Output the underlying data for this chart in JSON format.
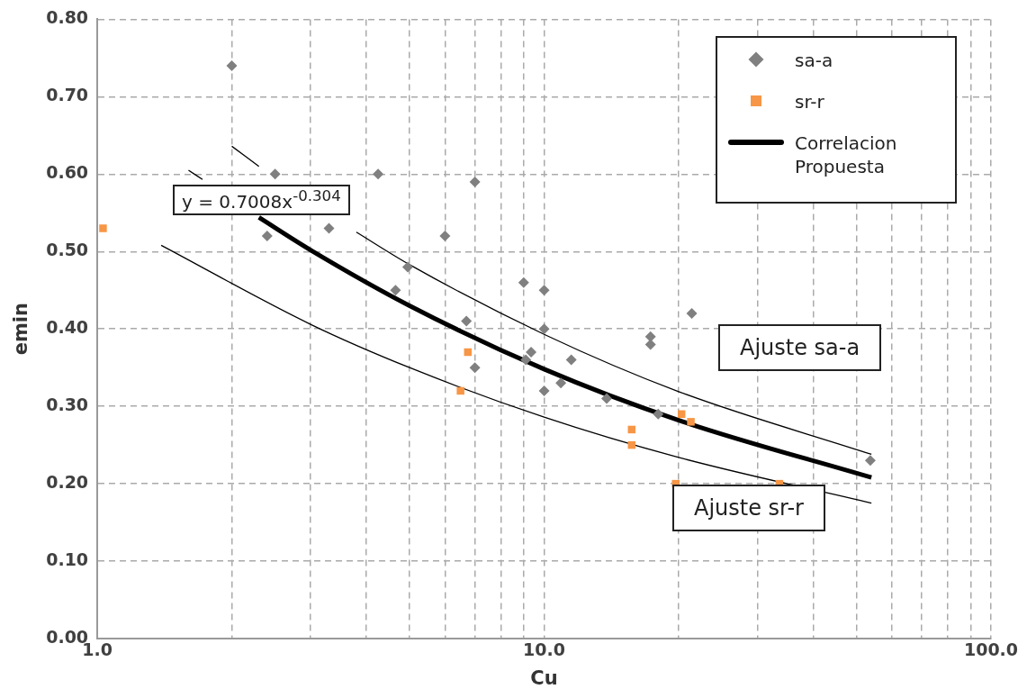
{
  "chart_data": {
    "type": "scatter",
    "xlabel": "Cu",
    "ylabel": "emin",
    "log": "x",
    "grid": true,
    "legend": "top right",
    "xlim": [
      1,
      100
    ],
    "xticks": [
      {
        "value": 1,
        "label": "1.0"
      },
      {
        "value": 2,
        "label": null
      },
      {
        "value": 3,
        "label": null
      },
      {
        "value": 4,
        "label": null
      },
      {
        "value": 5,
        "label": null
      },
      {
        "value": 6,
        "label": null
      },
      {
        "value": 7,
        "label": null
      },
      {
        "value": 8,
        "label": null
      },
      {
        "value": 9,
        "label": null
      },
      {
        "value": 10,
        "label": "10.0"
      },
      {
        "value": 20,
        "label": null
      },
      {
        "value": 30,
        "label": null
      },
      {
        "value": 40,
        "label": null
      },
      {
        "value": 50,
        "label": null
      },
      {
        "value": 60,
        "label": null
      },
      {
        "value": 70,
        "label": null
      },
      {
        "value": 80,
        "label": null
      },
      {
        "value": 90,
        "label": null
      },
      {
        "value": 100,
        "label": "100.0"
      }
    ],
    "ylim": [
      0,
      0.8
    ],
    "yticks": [
      {
        "value": 0,
        "label": "0.00"
      },
      {
        "value": 0.1,
        "label": "0.10"
      },
      {
        "value": 0.2,
        "label": "0.20"
      },
      {
        "value": 0.3,
        "label": "0.30"
      },
      {
        "value": 0.4,
        "label": "0.40"
      },
      {
        "value": 0.5,
        "label": "0.50"
      },
      {
        "value": 0.6,
        "label": "0.60"
      },
      {
        "value": 0.7,
        "label": "0.70"
      },
      {
        "value": 0.8,
        "label": "0.80"
      }
    ],
    "annotations": [
      "y = 0.7008x$^{-0.304}$",
      "Ajuste sa-a",
      "Ajuste sr-r"
    ],
    "series": [
      {
        "type": "line",
        "color": "#000000",
        "marker": "none",
        "x": [
          2,
          2.3,
          3,
          3.8,
          5,
          10,
          20,
          54
        ],
        "values": [
          0.636,
          0.61,
          null,
          0.525,
          0.483,
          0.393,
          0.319,
          0.238
        ]
      },
      {
        "type": "line",
        "color": "#000000",
        "marker": "none",
        "x": [
          1.6,
          1.72
        ],
        "values": [
          0.605,
          0.593
        ]
      },
      {
        "type": "line",
        "color": "#000000",
        "marker": "none",
        "x": [
          1.39,
          3,
          5,
          10,
          20,
          54
        ],
        "values": [
          0.508,
          0.406,
          0.35,
          0.286,
          0.234,
          0.175
        ]
      },
      {
        "name": "sa-a",
        "color": "#808080",
        "marker": "diamond",
        "x": [
          2,
          2.5,
          2.4,
          3.3,
          4.25,
          7,
          6,
          4.95,
          4.65,
          6.7,
          9.0,
          10,
          10,
          9.35,
          9.1,
          7,
          11.5,
          10.9,
          10,
          13.8,
          21.4,
          17.3,
          17.3,
          18,
          53.7
        ],
        "values": [
          0.74,
          0.6,
          0.52,
          0.53,
          0.6,
          0.59,
          0.52,
          0.48,
          0.45,
          0.41,
          0.46,
          0.45,
          0.4,
          0.37,
          0.36,
          0.35,
          0.36,
          0.33,
          0.32,
          0.31,
          0.42,
          0.39,
          0.38,
          0.29,
          0.23
        ]
      },
      {
        "name": "sr-r",
        "color": "#f79646",
        "marker": "square",
        "x": [
          1.03,
          6.75,
          6.5,
          15.7,
          15.7,
          20.3,
          21.3,
          19.7,
          33.6
        ],
        "values": [
          0.53,
          0.37,
          0.32,
          0.27,
          0.25,
          0.29,
          0.28,
          0.2,
          0.2
        ]
      },
      {
        "name": "Correlacion Propuesta",
        "type": "line",
        "color": "#000000",
        "marker": "none",
        "x": [
          2.3,
          3,
          5,
          10,
          20,
          54
        ],
        "values": [
          0.544,
          0.502,
          0.43,
          0.348,
          0.282,
          0.208
        ]
      }
    ]
  }
}
